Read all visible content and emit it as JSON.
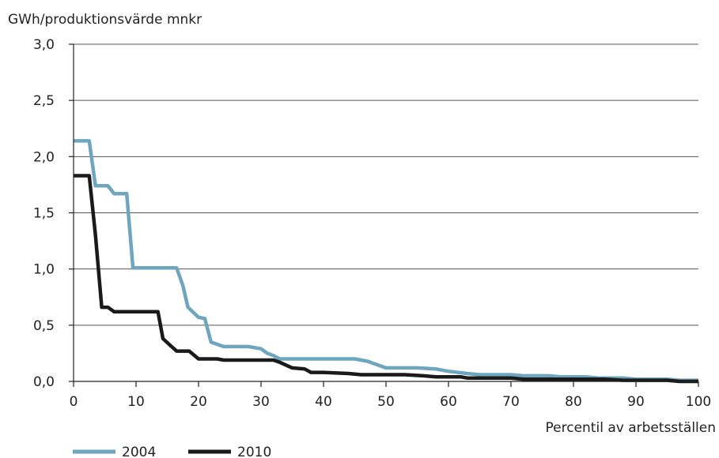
{
  "chart_data": {
    "type": "line",
    "ylabel": "GWh/produktionsvärde mnkr",
    "xlabel": "Percentil av arbetsställen",
    "xlim": [
      0,
      100
    ],
    "ylim": [
      0,
      3.0
    ],
    "x_ticks": [
      "0",
      "10",
      "20",
      "30",
      "40",
      "50",
      "60",
      "70",
      "80",
      "90",
      "100"
    ],
    "y_ticks": [
      "0,0",
      "0,5",
      "1,0",
      "1,5",
      "2,0",
      "2,5",
      "3,0"
    ],
    "grid": "horizontal",
    "legend_position": "bottom-left",
    "series": [
      {
        "name": "2004",
        "color": "#6fa6bf",
        "points": [
          [
            0,
            2.14
          ],
          [
            2.5,
            2.14
          ],
          [
            3.5,
            1.74
          ],
          [
            5.5,
            1.74
          ],
          [
            6.5,
            1.67
          ],
          [
            8.5,
            1.67
          ],
          [
            9.5,
            1.01
          ],
          [
            16.5,
            1.01
          ],
          [
            17.5,
            0.85
          ],
          [
            18.3,
            0.66
          ],
          [
            20,
            0.57
          ],
          [
            21,
            0.56
          ],
          [
            22,
            0.35
          ],
          [
            24,
            0.31
          ],
          [
            28,
            0.31
          ],
          [
            30,
            0.29
          ],
          [
            31,
            0.25
          ],
          [
            32,
            0.23
          ],
          [
            33,
            0.2
          ],
          [
            45,
            0.2
          ],
          [
            47,
            0.18
          ],
          [
            48,
            0.16
          ],
          [
            50,
            0.12
          ],
          [
            55,
            0.12
          ],
          [
            58,
            0.11
          ],
          [
            60,
            0.09
          ],
          [
            63,
            0.07
          ],
          [
            65,
            0.06
          ],
          [
            70,
            0.06
          ],
          [
            72,
            0.05
          ],
          [
            76,
            0.05
          ],
          [
            78,
            0.04
          ],
          [
            82,
            0.04
          ],
          [
            84,
            0.03
          ],
          [
            88,
            0.03
          ],
          [
            90,
            0.02
          ],
          [
            95,
            0.02
          ],
          [
            97,
            0.01
          ],
          [
            100,
            0.01
          ]
        ]
      },
      {
        "name": "2010",
        "color": "#1a1a1a",
        "points": [
          [
            0,
            1.83
          ],
          [
            2.5,
            1.83
          ],
          [
            3.5,
            1.3
          ],
          [
            4.5,
            0.66
          ],
          [
            5.5,
            0.66
          ],
          [
            6.5,
            0.62
          ],
          [
            13.5,
            0.62
          ],
          [
            14.3,
            0.38
          ],
          [
            15.5,
            0.32
          ],
          [
            16.5,
            0.27
          ],
          [
            18.5,
            0.27
          ],
          [
            20,
            0.2
          ],
          [
            23,
            0.2
          ],
          [
            24,
            0.19
          ],
          [
            32,
            0.19
          ],
          [
            33,
            0.17
          ],
          [
            35,
            0.12
          ],
          [
            37,
            0.11
          ],
          [
            38,
            0.08
          ],
          [
            40,
            0.08
          ],
          [
            44,
            0.07
          ],
          [
            46,
            0.06
          ],
          [
            53,
            0.06
          ],
          [
            56,
            0.05
          ],
          [
            58,
            0.04
          ],
          [
            62,
            0.04
          ],
          [
            63,
            0.03
          ],
          [
            70,
            0.03
          ],
          [
            72,
            0.02
          ],
          [
            85,
            0.02
          ],
          [
            88,
            0.01
          ],
          [
            95,
            0.01
          ],
          [
            97,
            0.0
          ],
          [
            100,
            0.0
          ]
        ]
      }
    ]
  }
}
